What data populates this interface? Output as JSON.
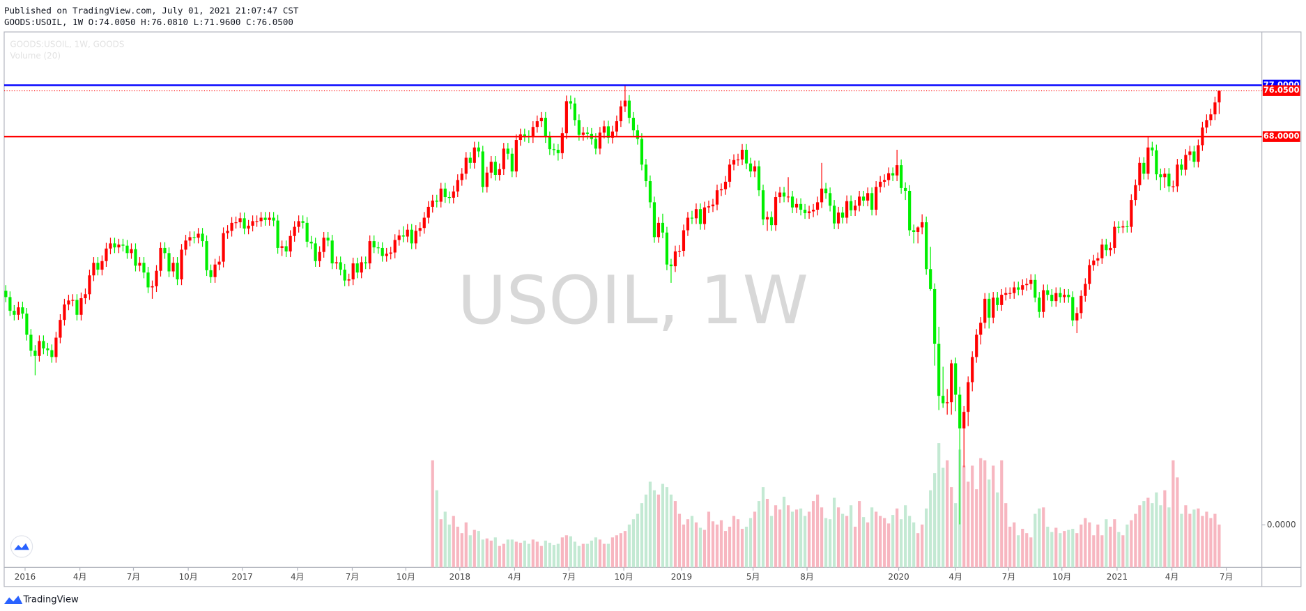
{
  "chart_data": {
    "type": "candlestick",
    "title": "Published on TradingView.com, July 01, 2021 21:07:47 CST",
    "subtitle": "GOODS:USOIL, 1W O:74.0050 H:76.0810 L:71.9600 C:76.0500",
    "legend_texts": [
      "GOODS:USOIL, 1W, GOODS",
      "Volume (20)"
    ],
    "watermark": "USOIL, 1W",
    "brand": "TradingView",
    "up_color": "#ff0000",
    "down_color": "#00ee00",
    "volume_up_color": "#f7b6c0",
    "volume_down_color": "#c3e9d3",
    "xlim": [
      -0.4,
      300.2
    ],
    "ylim": [
      -7.44,
      86.33
    ],
    "vlim": [
      0,
      500
    ],
    "yticks": [
      {
        "value": 0,
        "label": "0.0000"
      }
    ],
    "hlines": [
      {
        "value": 77,
        "label": "77.0000",
        "color": "#0000ff"
      },
      {
        "value": 68,
        "label": "68.0000",
        "color": "#ff0000"
      }
    ],
    "last_price": {
      "value": 76.05,
      "label": "76.0500",
      "color": "#ff0000"
    },
    "xticks": [
      {
        "value": 4.6,
        "label": "2016"
      },
      {
        "value": 17.7,
        "label": "4月"
      },
      {
        "value": 30.5,
        "label": "7月"
      },
      {
        "value": 43.6,
        "label": "10月"
      },
      {
        "value": 56.5,
        "label": "2017"
      },
      {
        "value": 69.7,
        "label": "4月"
      },
      {
        "value": 82.8,
        "label": "7月"
      },
      {
        "value": 95.6,
        "label": "10月"
      },
      {
        "value": 108.5,
        "label": "2018"
      },
      {
        "value": 121.6,
        "label": "4月"
      },
      {
        "value": 134.6,
        "label": "7月"
      },
      {
        "value": 147.7,
        "label": "10月"
      },
      {
        "value": 161.5,
        "label": "2019"
      },
      {
        "value": 178.6,
        "label": "5月"
      },
      {
        "value": 191.5,
        "label": "8月"
      },
      {
        "value": 213.4,
        "label": "2020"
      },
      {
        "value": 227.0,
        "label": "4月"
      },
      {
        "value": 239.7,
        "label": "7月"
      },
      {
        "value": 252.4,
        "label": "10月"
      },
      {
        "value": 265.6,
        "label": "2021"
      },
      {
        "value": 278.7,
        "label": "4月"
      },
      {
        "value": 291.7,
        "label": "7月"
      }
    ],
    "open": [
      41.0,
      39.9,
      37.5,
      36.8,
      38.1,
      37.0,
      33.3,
      30.5,
      29.6,
      32.2,
      30.9,
      30.6,
      29.4,
      32.8,
      35.9,
      38.6,
      39.3,
      39.4,
      36.8,
      39.7,
      40.4,
      43.7,
      45.9,
      44.7,
      46.2,
      48.4,
      49.3,
      48.6,
      49.1,
      48.9,
      47.6,
      48.3,
      45.4,
      45.9,
      44.2,
      41.6,
      41.8,
      44.5,
      48.5,
      47.6,
      44.4,
      45.9,
      43.0,
      48.2,
      49.8,
      50.4,
      50.3,
      51.0,
      49.7,
      44.6,
      43.4,
      45.6,
      46.1,
      51.1,
      51.5,
      52.9,
      53.0,
      53.7,
      51.9,
      52.4,
      53.2,
      53.2,
      53.8,
      53.4,
      53.8,
      53.3,
      48.5,
      48.8,
      47.9,
      50.6,
      52.2,
      53.2,
      52.9,
      49.6,
      49.3,
      46.2,
      47.8,
      50.3,
      49.8,
      45.8,
      46.0,
      44.7,
      42.8,
      43.0,
      45.8,
      44.2,
      46.0,
      45.8,
      49.7,
      48.6,
      48.5,
      47.1,
      47.5,
      47.7,
      49.9,
      50.7,
      50.5,
      51.7,
      49.3,
      51.5,
      52.0,
      53.8,
      55.7,
      56.8,
      56.6,
      58.9,
      57.4,
      57.3,
      58.4,
      60.4,
      61.5,
      64.3,
      63.4,
      66.1,
      65.4,
      59.2,
      61.7,
      63.6,
      61.3,
      62.3,
      65.9,
      65.0,
      61.9,
      67.4,
      68.4,
      68.1,
      67.9,
      69.7,
      70.7,
      71.3,
      67.9,
      65.8,
      65.7,
      65.1,
      68.6,
      74.2,
      73.8,
      70.9,
      68.3,
      68.7,
      68.5,
      67.6,
      65.9,
      68.7,
      69.8,
      67.8,
      68.9,
      70.7,
      73.3,
      74.3,
      71.3,
      69.1,
      67.6,
      63.1,
      60.2,
      56.5,
      50.4,
      52.9,
      51.2,
      45.6,
      45.3,
      47.9,
      48.0,
      51.6,
      53.8,
      53.7,
      55.3,
      52.7,
      55.6,
      55.8,
      56.1,
      58.6,
      58.8,
      60.1,
      63.1,
      63.9,
      64.0,
      65.7,
      63.3,
      61.9,
      62.8,
      58.6,
      53.5,
      53.9,
      52.5,
      57.4,
      58.2,
      57.5,
      57.5,
      55.6,
      56.2,
      55.2,
      54.6,
      54.9,
      55.2,
      56.5,
      58.9,
      58.1,
      55.9,
      52.8,
      54.7,
      53.8,
      56.7,
      55.1,
      55.9,
      57.5,
      56.8,
      58.1,
      55.2,
      59.2,
      60.1,
      60.4,
      61.6,
      61.2,
      63.0,
      59.0,
      58.5,
      51.6,
      51.3,
      52.1,
      53.0,
      44.8,
      41.3,
      31.7,
      22.6,
      21.3,
      21.5,
      28.3,
      22.8,
      16.9,
      19.8,
      25.0,
      29.4,
      33.3,
      35.4,
      39.6,
      36.3,
      39.8,
      38.5,
      40.3,
      40.6,
      40.6,
      41.6,
      41.2,
      42.0,
      42.2,
      42.9,
      39.8,
      37.3,
      41.1,
      40.3,
      39.2,
      40.6,
      39.9,
      40.3,
      39.9,
      35.8,
      37.1,
      40.1,
      42.2,
      45.5,
      46.3,
      46.7,
      49.1,
      48.1,
      48.5,
      52.2,
      52.1,
      52.3,
      52.2,
      56.9,
      59.5,
      63.4,
      61.5,
      66.1,
      65.6,
      61.4,
      60.9,
      61.5,
      59.3,
      59.3,
      63.1,
      62.2,
      64.8,
      65.4,
      63.6,
      66.5,
      69.6,
      70.9,
      71.9,
      74.005
    ],
    "high": [
      42.0,
      40.9,
      38.5,
      39.1,
      39.1,
      38.0,
      34.3,
      31.5,
      33.2,
      33.2,
      31.9,
      31.6,
      33.8,
      36.9,
      39.6,
      40.3,
      40.4,
      40.4,
      40.7,
      41.4,
      44.7,
      46.9,
      46.9,
      47.2,
      49.4,
      50.3,
      50.3,
      50.1,
      50.1,
      49.9,
      49.3,
      49.3,
      46.9,
      46.9,
      45.2,
      42.8,
      45.5,
      49.5,
      49.5,
      48.6,
      46.9,
      46.9,
      49.2,
      50.8,
      51.4,
      51.4,
      52.0,
      52.0,
      50.7,
      45.6,
      46.6,
      47.1,
      52.1,
      52.5,
      53.9,
      54.0,
      54.7,
      54.7,
      53.4,
      54.2,
      54.2,
      54.8,
      54.8,
      54.8,
      54.8,
      54.3,
      49.8,
      49.8,
      51.6,
      53.2,
      54.2,
      54.2,
      53.9,
      50.6,
      50.3,
      48.8,
      51.3,
      51.3,
      50.8,
      47.0,
      47.0,
      45.7,
      44.0,
      46.8,
      46.8,
      47.0,
      47.0,
      50.7,
      50.7,
      49.6,
      49.5,
      48.5,
      48.7,
      50.9,
      51.7,
      52.3,
      52.7,
      52.7,
      52.5,
      53.0,
      54.8,
      56.7,
      57.8,
      57.8,
      59.9,
      59.9,
      58.4,
      59.4,
      61.4,
      62.5,
      65.3,
      65.3,
      67.1,
      67.1,
      66.4,
      62.7,
      64.6,
      64.6,
      63.3,
      66.9,
      66.9,
      66.0,
      68.4,
      69.4,
      69.4,
      69.1,
      70.7,
      71.7,
      72.3,
      72.3,
      68.9,
      66.8,
      66.7,
      69.6,
      75.2,
      75.2,
      74.8,
      71.9,
      69.7,
      69.7,
      69.5,
      68.6,
      69.7,
      70.8,
      70.8,
      69.9,
      71.7,
      74.3,
      76.9,
      75.3,
      72.3,
      70.1,
      68.6,
      64.1,
      61.2,
      57.5,
      53.9,
      54.5,
      52.2,
      46.6,
      48.9,
      49.0,
      52.6,
      54.8,
      55.0,
      56.3,
      56.3,
      56.6,
      56.8,
      57.1,
      59.6,
      59.8,
      61.1,
      64.1,
      64.9,
      65.0,
      66.7,
      66.7,
      64.3,
      63.8,
      63.8,
      59.6,
      54.9,
      54.9,
      58.4,
      59.2,
      59.2,
      60.9,
      58.5,
      57.2,
      57.2,
      56.2,
      55.9,
      56.2,
      57.5,
      63.4,
      59.9,
      59.1,
      56.9,
      55.7,
      55.7,
      57.7,
      57.7,
      56.9,
      58.5,
      58.5,
      59.1,
      59.1,
      60.2,
      61.1,
      61.4,
      62.6,
      62.6,
      65.7,
      64.0,
      60.0,
      59.5,
      52.6,
      52.3,
      54.4,
      54.0,
      48.7,
      42.3,
      34.7,
      27.7,
      23.8,
      28.9,
      29.3,
      24.2,
      20.8,
      26.0,
      30.4,
      34.3,
      36.4,
      40.6,
      40.6,
      40.8,
      40.8,
      41.3,
      41.6,
      41.6,
      42.6,
      42.6,
      43.0,
      43.2,
      43.9,
      43.9,
      40.8,
      42.1,
      42.1,
      41.3,
      41.6,
      41.6,
      41.3,
      41.3,
      40.9,
      38.1,
      41.1,
      43.2,
      46.5,
      47.3,
      47.7,
      50.1,
      50.1,
      49.5,
      53.2,
      53.2,
      53.3,
      53.3,
      57.9,
      60.5,
      64.4,
      64.4,
      67.9,
      67.1,
      66.6,
      62.4,
      62.5,
      62.5,
      60.3,
      64.1,
      64.1,
      65.8,
      66.4,
      66.4,
      67.5,
      70.6,
      71.9,
      72.9,
      75.0,
      76.081
    ],
    "low": [
      39.0,
      36.6,
      35.8,
      35.9,
      36.1,
      32.3,
      29.5,
      26.2,
      28.6,
      29.9,
      29.6,
      28.4,
      28.4,
      31.8,
      34.9,
      37.6,
      38.3,
      35.8,
      35.8,
      38.7,
      39.4,
      42.7,
      43.7,
      43.7,
      45.2,
      47.4,
      47.6,
      47.6,
      47.9,
      46.6,
      46.6,
      44.4,
      44.4,
      43.2,
      40.6,
      39.6,
      40.8,
      43.5,
      46.6,
      43.4,
      43.4,
      42.0,
      42.0,
      47.2,
      48.8,
      49.3,
      49.3,
      48.7,
      43.6,
      42.4,
      42.4,
      44.6,
      45.1,
      50.1,
      50.5,
      51.9,
      52.0,
      50.9,
      50.9,
      51.4,
      52.2,
      52.2,
      52.4,
      52.4,
      52.3,
      47.5,
      47.1,
      46.9,
      46.9,
      49.6,
      51.2,
      51.9,
      48.6,
      48.3,
      45.2,
      45.2,
      46.8,
      48.8,
      44.8,
      44.8,
      43.7,
      41.8,
      41.8,
      42.0,
      43.2,
      43.2,
      44.8,
      44.8,
      47.6,
      47.5,
      46.1,
      46.1,
      46.5,
      46.7,
      48.9,
      49.5,
      49.5,
      48.3,
      48.3,
      50.5,
      51.0,
      52.8,
      54.7,
      55.6,
      55.6,
      56.4,
      56.3,
      56.3,
      57.4,
      59.4,
      60.5,
      62.4,
      62.4,
      64.4,
      58.2,
      58.2,
      60.7,
      60.3,
      60.3,
      61.3,
      64.0,
      60.9,
      60.9,
      66.4,
      67.1,
      66.9,
      66.9,
      68.7,
      69.7,
      66.9,
      64.8,
      64.7,
      63.8,
      64.1,
      67.6,
      72.8,
      69.9,
      67.3,
      67.3,
      67.5,
      66.6,
      64.9,
      64.9,
      67.7,
      66.8,
      66.8,
      67.9,
      69.7,
      72.3,
      70.3,
      68.1,
      66.6,
      62.1,
      59.2,
      55.5,
      49.4,
      49.4,
      50.2,
      44.6,
      42.4,
      44.3,
      46.9,
      47.0,
      50.6,
      52.7,
      52.7,
      51.7,
      51.7,
      54.6,
      54.8,
      55.1,
      57.6,
      57.8,
      59.1,
      62.1,
      62.9,
      63.0,
      62.3,
      60.9,
      60.9,
      57.6,
      52.5,
      51.5,
      51.5,
      51.5,
      56.4,
      56.5,
      56.5,
      54.6,
      54.6,
      54.2,
      53.6,
      53.6,
      53.9,
      54.2,
      55.5,
      57.1,
      54.9,
      51.8,
      51.8,
      52.8,
      52.8,
      54.1,
      54.1,
      54.9,
      55.8,
      55.8,
      54.2,
      54.2,
      58.2,
      59.1,
      59.4,
      60.2,
      60.2,
      58.0,
      56.9,
      50.6,
      49.3,
      49.3,
      50.9,
      43.8,
      41.0,
      27.9,
      20.1,
      20.5,
      19.3,
      19.3,
      19.9,
      0.1,
      10.1,
      17.3,
      23.4,
      28.4,
      31.6,
      34.4,
      34.4,
      35.3,
      37.5,
      37.5,
      39.3,
      39.6,
      39.6,
      40.2,
      40.2,
      41.0,
      41.2,
      39.0,
      36.3,
      36.3,
      39.3,
      38.2,
      38.2,
      38.9,
      38.9,
      38.9,
      34.8,
      33.6,
      36.1,
      39.1,
      41.2,
      44.5,
      45.3,
      45.7,
      47.1,
      47.1,
      47.5,
      51.1,
      51.1,
      51.2,
      51.2,
      55.9,
      58.5,
      60.5,
      60.5,
      64.6,
      60.4,
      58.6,
      59.0,
      58.3,
      58.3,
      58.3,
      61.2,
      61.2,
      63.8,
      62.6,
      62.6,
      65.5,
      68.6,
      69.9,
      70.9,
      71.96
    ],
    "close": [
      39.9,
      37.5,
      36.8,
      38.1,
      37.0,
      33.3,
      30.5,
      29.6,
      32.2,
      30.9,
      30.6,
      29.4,
      32.8,
      35.9,
      38.6,
      39.3,
      39.4,
      36.8,
      39.7,
      40.4,
      43.7,
      45.9,
      44.7,
      46.2,
      48.4,
      49.3,
      48.6,
      49.1,
      48.9,
      47.6,
      48.3,
      45.4,
      45.9,
      44.2,
      41.6,
      41.8,
      44.5,
      48.5,
      47.6,
      44.4,
      45.9,
      43.0,
      48.2,
      49.8,
      50.4,
      50.3,
      51.0,
      49.7,
      44.6,
      43.4,
      45.6,
      46.1,
      51.1,
      51.5,
      52.9,
      53.0,
      53.7,
      51.9,
      52.4,
      53.2,
      53.2,
      53.8,
      53.4,
      53.8,
      53.3,
      48.5,
      48.8,
      47.9,
      50.6,
      52.2,
      53.2,
      52.9,
      49.6,
      49.3,
      46.2,
      47.8,
      50.3,
      49.8,
      45.8,
      46.0,
      44.7,
      42.8,
      43.0,
      45.8,
      44.2,
      46.0,
      45.8,
      49.7,
      48.6,
      48.5,
      47.1,
      47.5,
      47.7,
      49.9,
      50.7,
      50.5,
      51.7,
      49.3,
      51.5,
      52.0,
      53.8,
      55.7,
      56.8,
      56.6,
      58.9,
      57.4,
      57.3,
      58.4,
      60.4,
      61.5,
      64.3,
      63.4,
      66.1,
      65.4,
      59.2,
      61.7,
      63.6,
      61.3,
      62.3,
      65.9,
      65.0,
      61.9,
      67.4,
      68.4,
      68.1,
      67.9,
      69.7,
      70.7,
      71.3,
      67.9,
      65.8,
      65.7,
      65.1,
      68.6,
      74.2,
      73.8,
      70.9,
      68.3,
      68.7,
      68.5,
      67.6,
      65.9,
      68.7,
      69.8,
      67.8,
      68.9,
      70.7,
      73.3,
      74.3,
      71.3,
      69.1,
      67.6,
      63.1,
      60.2,
      56.5,
      50.4,
      52.9,
      51.2,
      45.6,
      45.3,
      47.9,
      48.0,
      51.6,
      53.8,
      53.7,
      55.3,
      52.7,
      55.6,
      55.8,
      56.1,
      58.6,
      58.8,
      60.1,
      63.1,
      63.9,
      64.0,
      65.7,
      63.3,
      61.9,
      62.8,
      58.6,
      53.5,
      53.9,
      52.5,
      57.4,
      58.2,
      57.5,
      57.5,
      55.6,
      56.2,
      55.2,
      54.6,
      54.9,
      55.2,
      56.5,
      58.9,
      58.1,
      55.9,
      52.8,
      54.7,
      53.8,
      56.7,
      55.1,
      55.9,
      57.5,
      56.8,
      58.1,
      55.2,
      59.2,
      60.1,
      60.4,
      61.6,
      61.2,
      63.0,
      59.0,
      58.5,
      51.6,
      51.3,
      52.1,
      53.0,
      44.8,
      41.3,
      31.7,
      22.6,
      21.3,
      21.5,
      28.3,
      22.8,
      16.9,
      19.8,
      25.0,
      29.4,
      33.3,
      35.4,
      39.6,
      36.3,
      39.8,
      38.5,
      40.3,
      40.6,
      40.6,
      41.6,
      41.2,
      42.0,
      42.2,
      42.9,
      39.8,
      37.3,
      41.1,
      40.3,
      39.2,
      40.6,
      39.9,
      40.3,
      39.9,
      35.8,
      37.1,
      40.1,
      42.2,
      45.5,
      46.3,
      46.7,
      49.1,
      48.1,
      48.5,
      52.2,
      52.1,
      52.3,
      52.2,
      56.9,
      59.5,
      63.4,
      61.5,
      66.1,
      65.6,
      61.4,
      60.9,
      61.5,
      59.3,
      59.3,
      63.1,
      62.2,
      64.8,
      65.4,
      63.6,
      66.5,
      69.6,
      70.9,
      71.9,
      74.0,
      76.05
    ],
    "volume": [
      null,
      null,
      null,
      null,
      null,
      null,
      null,
      null,
      null,
      null,
      null,
      null,
      null,
      null,
      null,
      null,
      null,
      null,
      null,
      null,
      null,
      null,
      null,
      null,
      null,
      null,
      null,
      null,
      null,
      null,
      null,
      null,
      null,
      null,
      null,
      null,
      null,
      null,
      null,
      null,
      null,
      null,
      null,
      null,
      null,
      null,
      null,
      null,
      null,
      null,
      null,
      null,
      null,
      null,
      null,
      null,
      null,
      null,
      null,
      null,
      null,
      null,
      null,
      null,
      null,
      null,
      null,
      null,
      null,
      null,
      null,
      null,
      null,
      null,
      null,
      null,
      null,
      null,
      null,
      null,
      null,
      null,
      null,
      null,
      null,
      null,
      null,
      null,
      null,
      null,
      null,
      null,
      null,
      null,
      null,
      null,
      null,
      null,
      null,
      null,
      null,
      null,
      100,
      72,
      45,
      52,
      40,
      48,
      38,
      32,
      42,
      30,
      35,
      34,
      26,
      27,
      25,
      28,
      20,
      22,
      26,
      26,
      24,
      23,
      25,
      22,
      26,
      24,
      20,
      25,
      23,
      21,
      22,
      28,
      30,
      29,
      24,
      20,
      22,
      22,
      25,
      28,
      26,
      22,
      22,
      28,
      30,
      32,
      34,
      40,
      45,
      50,
      60,
      68,
      80,
      72,
      68,
      78,
      75,
      68,
      62,
      50,
      40,
      45,
      48,
      42,
      37,
      35,
      52,
      43,
      40,
      44,
      34,
      38,
      48,
      45,
      36,
      38,
      46,
      52,
      62,
      75,
      64,
      48,
      58,
      54,
      66,
      58,
      52,
      54,
      55,
      48,
      52,
      62,
      68,
      56,
      46,
      45,
      65,
      56,
      50,
      48,
      58,
      38,
      62,
      47,
      42,
      56,
      52,
      48,
      46,
      41,
      49,
      55,
      45,
      58,
      48,
      42,
      32,
      40,
      55,
      72,
      88,
      116,
      93,
      100,
      75,
      60,
      110,
      95,
      80,
      95,
      73,
      102,
      100,
      82,
      95,
      70,
      100,
      60,
      38,
      42,
      30,
      36,
      32,
      28,
      50,
      55,
      56,
      38,
      33,
      37,
      32,
      34,
      35,
      36,
      32,
      40,
      46,
      42,
      30,
      40,
      30,
      45,
      38,
      45,
      33,
      30,
      40,
      44,
      50,
      58,
      62,
      65,
      60,
      70,
      58,
      72,
      56,
      100,
      84,
      50,
      58,
      50,
      54,
      55,
      48,
      52,
      46,
      50,
      40
    ]
  }
}
